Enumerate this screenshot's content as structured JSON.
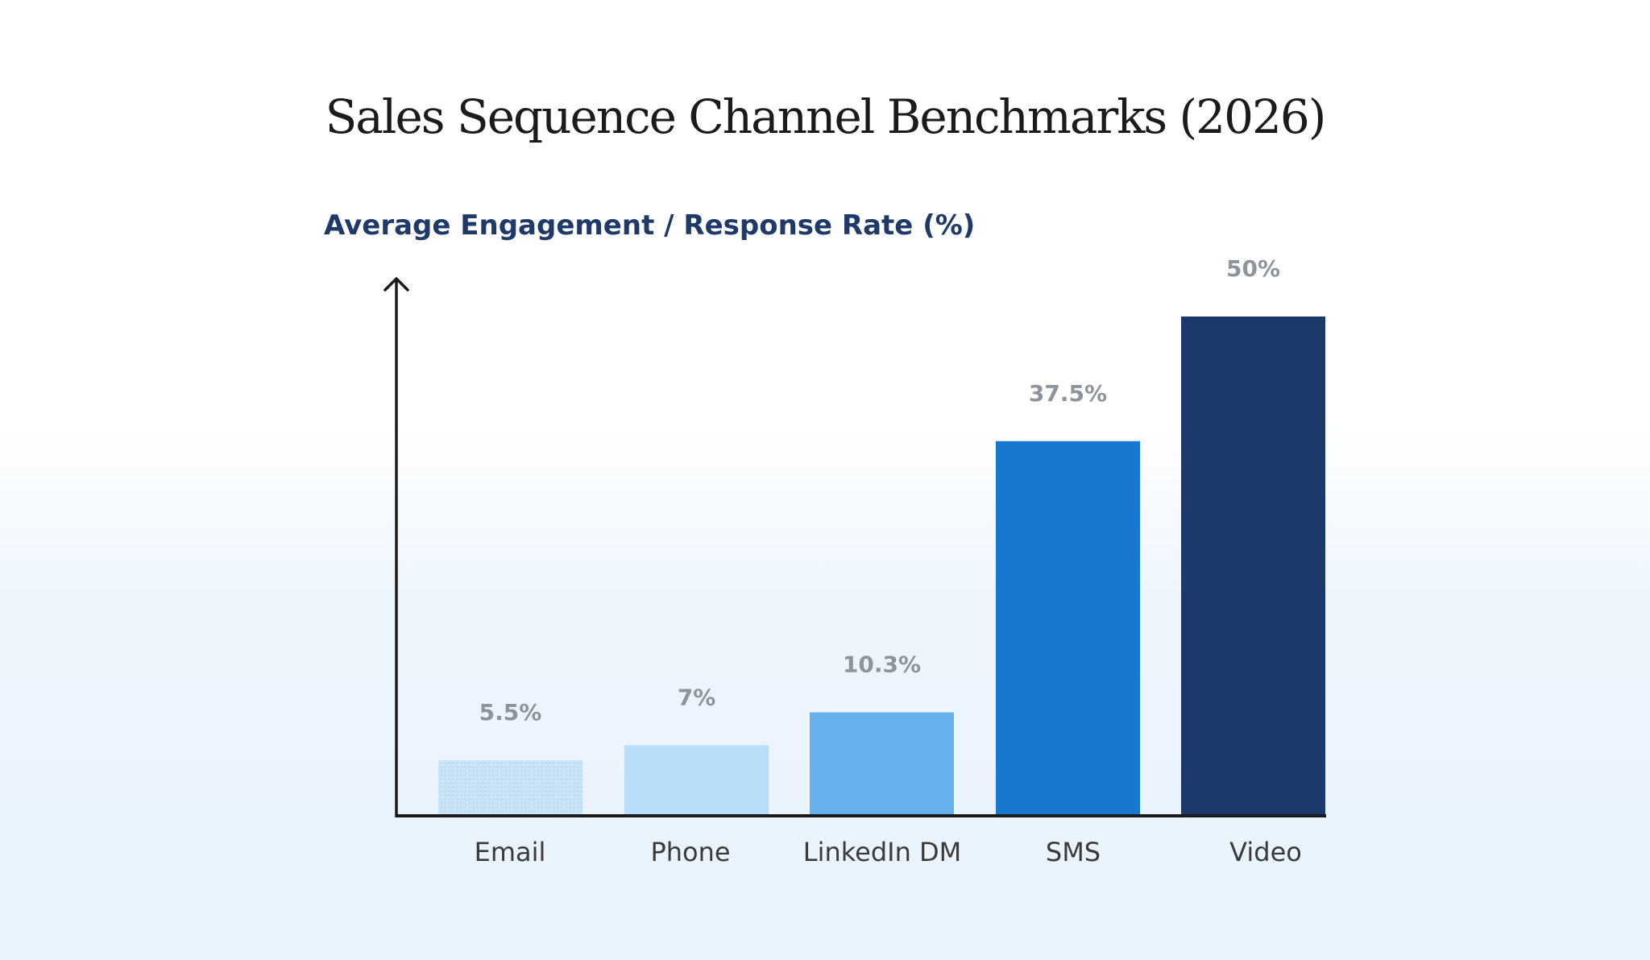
{
  "chart_data": {
    "type": "bar",
    "title": "Sales Sequence Channel Benchmarks (2026)",
    "ylabel": "Average Engagement / Response Rate (%)",
    "xlabel": "",
    "categories": [
      "Email",
      "Phone",
      "LinkedIn DM",
      "SMS",
      "Video"
    ],
    "values": [
      5.5,
      7,
      10.3,
      37.5,
      50
    ],
    "value_labels": [
      "5.5%",
      "7%",
      "10.3%",
      "37.5%",
      "50%"
    ],
    "colors": [
      "#c6e2f7",
      "#b7ddf8",
      "#64b1ec",
      "#1878d0",
      "#1c3a69"
    ],
    "grid": false,
    "legend": "none"
  }
}
